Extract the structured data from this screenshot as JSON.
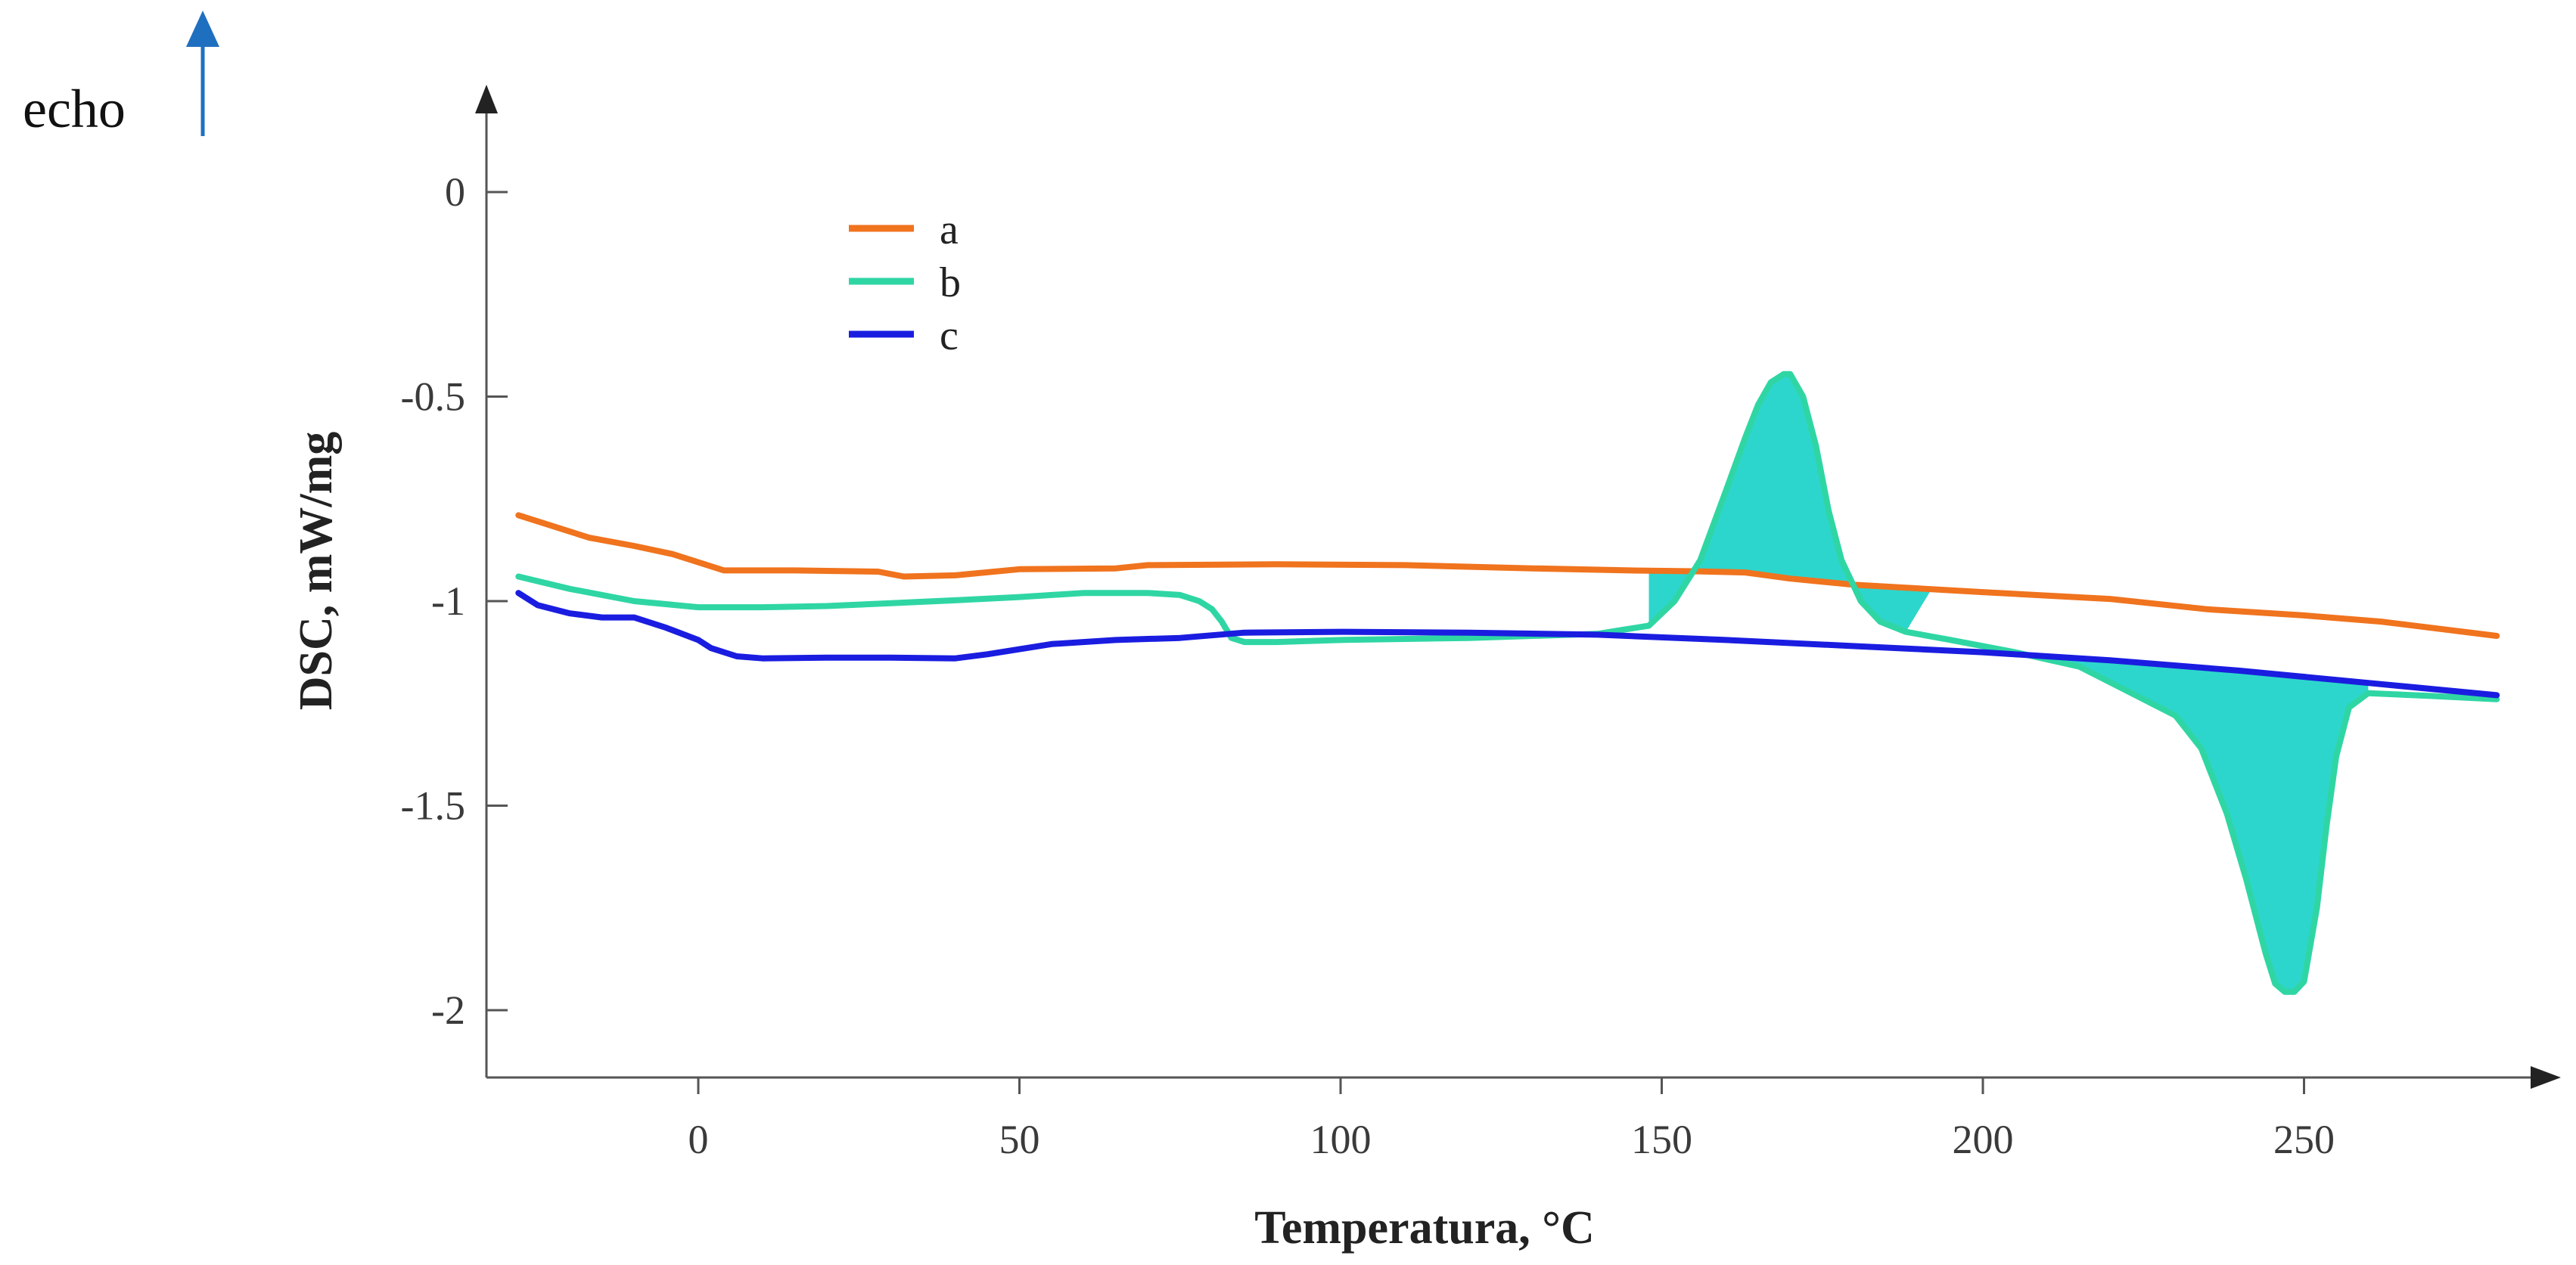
{
  "chart_data": {
    "type": "line",
    "title": "",
    "xlabel": "Temperatura, °C",
    "ylabel": "DSC, mW/mg",
    "xlim": [
      -33,
      285
    ],
    "ylim": [
      -2.15,
      0.22
    ],
    "xticks": [
      0,
      50,
      100,
      150,
      200,
      250
    ],
    "yticks": [
      0,
      -0.5,
      -1,
      -1.5,
      -2
    ],
    "xtick_labels": [
      "0",
      "50",
      "100",
      "150",
      "200",
      "250"
    ],
    "ytick_labels": [
      "0",
      "-0.5",
      "-1",
      "-1.5",
      "-2"
    ],
    "annotation": {
      "text": "echo",
      "arrow": "up",
      "color": "#1f6fc0"
    },
    "legend": {
      "position": "top-left",
      "entries": [
        "a",
        "b",
        "c"
      ]
    },
    "series": [
      {
        "name": "a",
        "color": "#f0731e",
        "x": [
          -28,
          -22,
          -17,
          -10,
          -4,
          1,
          4,
          15,
          28,
          32,
          40,
          50,
          65,
          70,
          90,
          110,
          130,
          145,
          155,
          163,
          170,
          180,
          200,
          220,
          235,
          250,
          262,
          280
        ],
        "y": [
          -0.79,
          -0.82,
          -0.845,
          -0.865,
          -0.885,
          -0.91,
          -0.925,
          -0.925,
          -0.928,
          -0.94,
          -0.937,
          -0.922,
          -0.92,
          -0.912,
          -0.91,
          -0.912,
          -0.92,
          -0.925,
          -0.927,
          -0.93,
          -0.945,
          -0.96,
          -0.978,
          -0.995,
          -1.02,
          -1.035,
          -1.05,
          -1.085
        ]
      },
      {
        "name": "b",
        "color": "#2fd6a4",
        "fill": "#1bd2c8",
        "x": [
          -28,
          -20,
          -10,
          0,
          10,
          20,
          30,
          40,
          50,
          60,
          70,
          75,
          78,
          80,
          81.5,
          83,
          85,
          90,
          100,
          120,
          140,
          148,
          152,
          156,
          160,
          163,
          165,
          167,
          169,
          170,
          172,
          174,
          176,
          178,
          181,
          184,
          188,
          195,
          205,
          215,
          225,
          230,
          234,
          238,
          241,
          244,
          245.5,
          247,
          248.5,
          250,
          252,
          253.5,
          255,
          257,
          260,
          270,
          280
        ],
        "y": [
          -0.94,
          -0.97,
          -1.0,
          -1.015,
          -1.015,
          -1.012,
          -1.005,
          -0.998,
          -0.99,
          -0.98,
          -0.98,
          -0.985,
          -1.0,
          -1.02,
          -1.05,
          -1.09,
          -1.1,
          -1.1,
          -1.095,
          -1.09,
          -1.08,
          -1.06,
          -1.0,
          -0.9,
          -0.73,
          -0.6,
          -0.52,
          -0.465,
          -0.445,
          -0.445,
          -0.5,
          -0.62,
          -0.78,
          -0.9,
          -1.0,
          -1.05,
          -1.075,
          -1.095,
          -1.125,
          -1.16,
          -1.24,
          -1.28,
          -1.36,
          -1.52,
          -1.68,
          -1.86,
          -1.935,
          -1.955,
          -1.955,
          -1.93,
          -1.75,
          -1.55,
          -1.38,
          -1.26,
          -1.225,
          -1.232,
          -1.24
        ]
      },
      {
        "name": "c",
        "color": "#1a1de0",
        "x": [
          -28,
          -25,
          -20,
          -15,
          -10,
          -5,
          0,
          2,
          6,
          10,
          20,
          30,
          40,
          45,
          55,
          65,
          75,
          85,
          100,
          120,
          140,
          160,
          180,
          200,
          220,
          240,
          260,
          280
        ],
        "y": [
          -0.98,
          -1.01,
          -1.03,
          -1.04,
          -1.04,
          -1.065,
          -1.095,
          -1.115,
          -1.135,
          -1.14,
          -1.138,
          -1.138,
          -1.14,
          -1.13,
          -1.105,
          -1.095,
          -1.09,
          -1.077,
          -1.075,
          -1.077,
          -1.082,
          -1.095,
          -1.11,
          -1.125,
          -1.145,
          -1.17,
          -1.2,
          -1.23
        ]
      }
    ]
  }
}
